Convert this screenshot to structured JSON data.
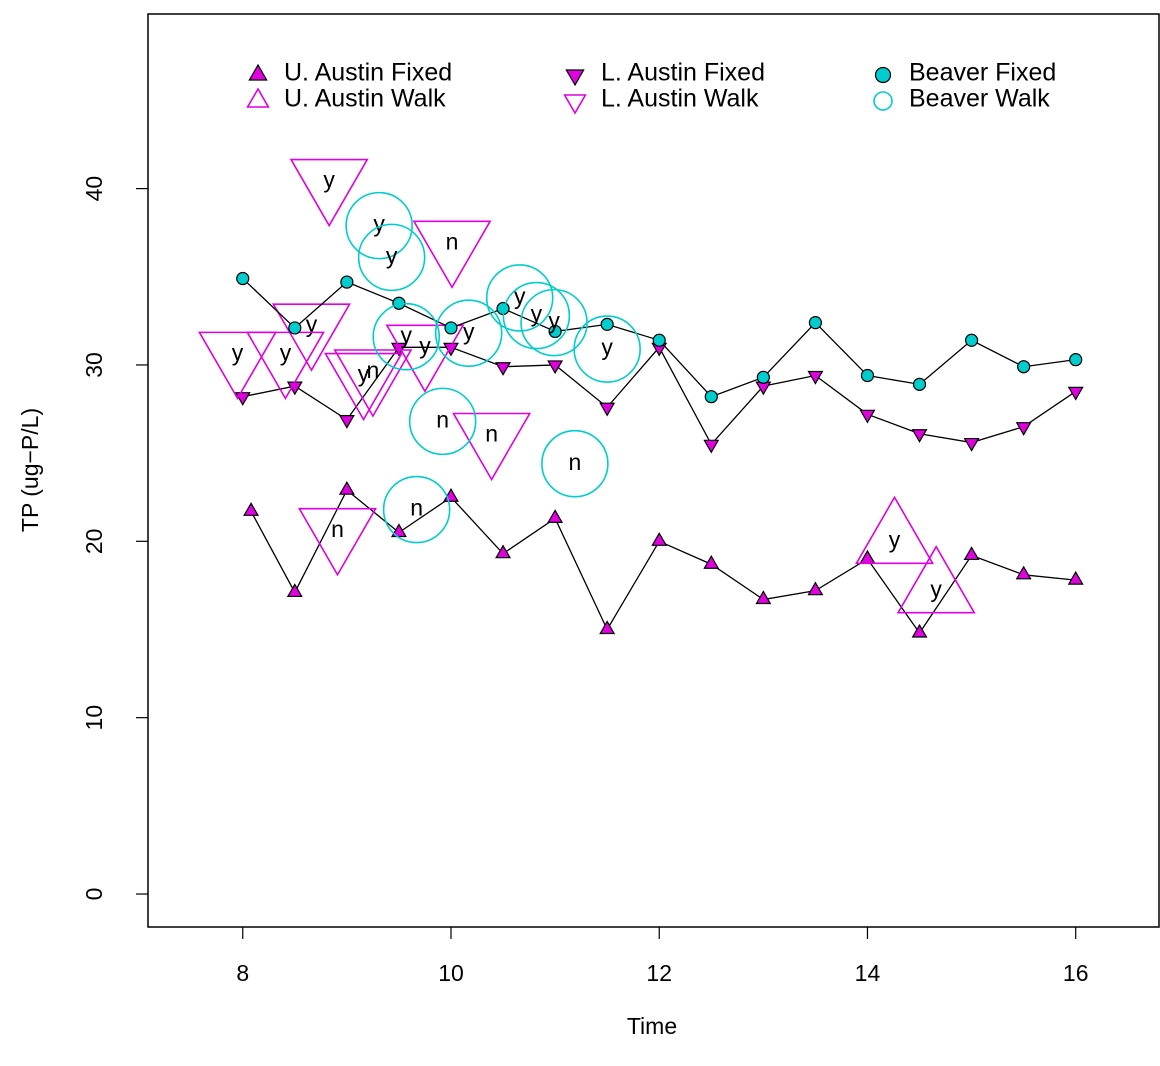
{
  "chart_data": {
    "type": "scatter",
    "x_label": "Time",
    "y_label": "TP (ug−P/L)",
    "xlim": [
      7.09,
      16.8
    ],
    "ylim": [
      -1.87,
      49.9
    ],
    "xticks": [
      8,
      10,
      12,
      14,
      16
    ],
    "yticks": [
      0,
      10,
      20,
      30,
      40
    ],
    "legend_position": "top",
    "series": [
      {
        "name": "U. Austin Fixed",
        "color": "#e000e0",
        "marker": "triangle-up",
        "filled": true,
        "connected": true,
        "x": [
          8.08,
          8.5,
          9.0,
          9.5,
          10.0,
          10.5,
          11.0,
          11.5,
          12.0,
          12.5,
          13.0,
          13.5,
          14.0,
          14.5,
          15.0,
          15.5,
          16.0
        ],
        "values": [
          21.7,
          17.1,
          22.9,
          20.5,
          22.5,
          19.3,
          21.3,
          15.0,
          20.0,
          18.7,
          16.7,
          17.2,
          19.0,
          14.8,
          19.2,
          18.1,
          17.8
        ]
      },
      {
        "name": "U. Austin Walk",
        "color": "#e000e0",
        "marker": "triangle-up",
        "filled": false,
        "connected": false,
        "x": [
          14.26,
          14.66
        ],
        "values": [
          20.0,
          17.2
        ],
        "labels": [
          "y",
          "y"
        ]
      },
      {
        "name": "L. Austin Fixed",
        "color": "#e000e0",
        "marker": "triangle-down",
        "filled": true,
        "connected": true,
        "x": [
          8.0,
          8.5,
          9.0,
          9.5,
          10.0,
          10.5,
          11.0,
          11.5,
          12.0,
          12.5,
          13.0,
          13.5,
          14.0,
          14.5,
          15.0,
          15.5,
          16.0
        ],
        "values": [
          28.2,
          28.8,
          26.9,
          31.0,
          31.0,
          29.9,
          30.0,
          27.6,
          31.0,
          25.5,
          28.8,
          29.4,
          27.2,
          26.1,
          25.6,
          26.5,
          28.5
        ]
      },
      {
        "name": "L. Austin Walk",
        "color": "#e000e0",
        "marker": "triangle-down",
        "filled": false,
        "connected": false,
        "x": [
          8.83,
          10.01,
          8.66,
          7.95,
          8.41,
          9.16,
          9.25,
          9.75,
          10.39,
          8.91
        ],
        "values": [
          40.4,
          36.9,
          32.2,
          30.6,
          30.6,
          29.4,
          29.6,
          31.0,
          26.0,
          20.6
        ],
        "labels": [
          "y",
          "n",
          "y",
          "y",
          "y",
          "y",
          "n",
          "y",
          "n",
          "n"
        ]
      },
      {
        "name": "Beaver Fixed",
        "color": "#00cdcd",
        "marker": "circle",
        "filled": true,
        "connected": true,
        "x": [
          8.0,
          8.5,
          9.0,
          9.5,
          10.0,
          10.5,
          11.0,
          11.5,
          12.0,
          12.5,
          13.0,
          13.5,
          14.0,
          14.5,
          15.0,
          15.5,
          16.0
        ],
        "values": [
          34.9,
          32.1,
          34.7,
          33.5,
          32.1,
          33.2,
          31.9,
          32.3,
          31.4,
          28.2,
          29.3,
          32.4,
          29.4,
          28.9,
          31.4,
          29.9,
          30.3
        ]
      },
      {
        "name": "Beaver Walk",
        "color": "#00cdcd",
        "marker": "circle",
        "filled": false,
        "connected": false,
        "x": [
          9.31,
          9.43,
          10.66,
          10.82,
          10.99,
          9.57,
          10.17,
          11.5,
          9.92,
          11.19,
          9.67
        ],
        "values": [
          37.9,
          36.1,
          33.8,
          32.8,
          32.4,
          31.6,
          31.8,
          30.9,
          26.8,
          24.4,
          21.8
        ],
        "labels": [
          "y",
          "y",
          "y",
          "y",
          "y",
          "y",
          "y",
          "y",
          "n",
          "n",
          "n"
        ]
      }
    ]
  }
}
